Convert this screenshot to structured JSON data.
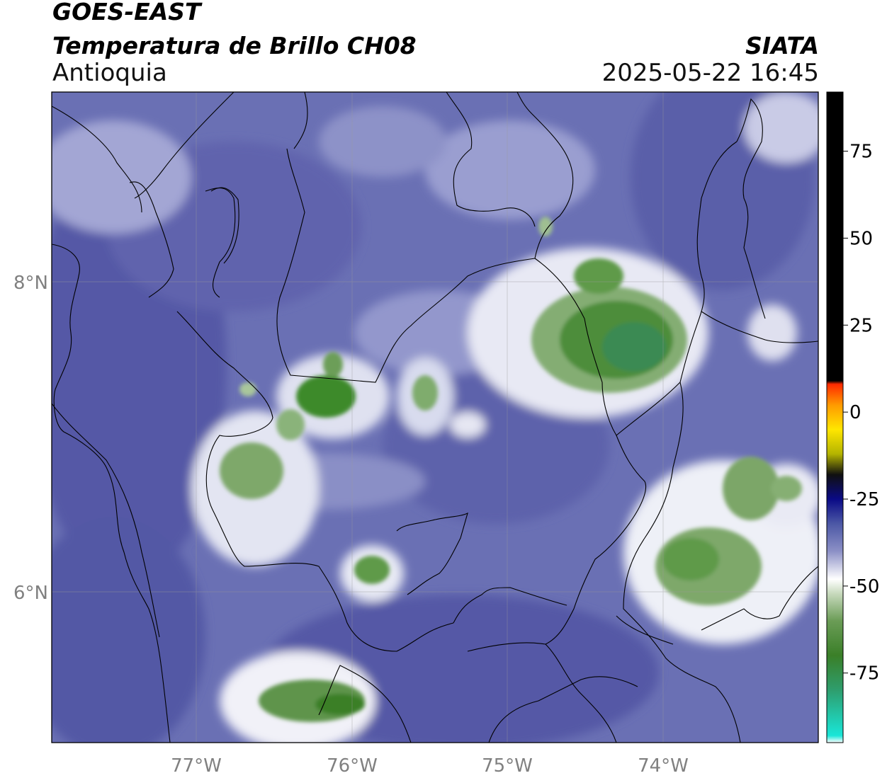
{
  "header": {
    "satellite": "GOES-EAST",
    "product": "Temperatura de Brillo CH08",
    "region": "Antioquia",
    "agency": "SIATA",
    "datetime": "2025-05-22 16:45"
  },
  "map": {
    "lat_ticks": [
      "8°N",
      "6°N"
    ],
    "lon_ticks": [
      "77°W",
      "76°W",
      "75°W",
      "74°W"
    ],
    "extent": {
      "lon": [
        -77.95,
        -73.0
      ],
      "lat": [
        5.05,
        9.25
      ]
    }
  },
  "colorbar": {
    "ticks": [
      "75",
      "50",
      "25",
      "0",
      "-25",
      "-50",
      "-75"
    ],
    "range": [
      -95,
      92
    ],
    "stops": [
      {
        "v": -95,
        "c": "#ffffff"
      },
      {
        "v": -93,
        "c": "#19e6d8"
      },
      {
        "v": -80,
        "c": "#2e9e6e"
      },
      {
        "v": -70,
        "c": "#3a7f28"
      },
      {
        "v": -60,
        "c": "#6b9c56"
      },
      {
        "v": -52,
        "c": "#c9dbbf"
      },
      {
        "v": -48,
        "c": "#ffffff"
      },
      {
        "v": -40,
        "c": "#8c90c6"
      },
      {
        "v": -32,
        "c": "#4b57a5"
      },
      {
        "v": -25,
        "c": "#0a0a86"
      },
      {
        "v": -18,
        "c": "#101010"
      },
      {
        "v": -12,
        "c": "#b5b500"
      },
      {
        "v": -5,
        "c": "#ffe600"
      },
      {
        "v": 2,
        "c": "#ff9b00"
      },
      {
        "v": 8,
        "c": "#ff2a00"
      },
      {
        "v": 9,
        "c": "#000000"
      },
      {
        "v": 92,
        "c": "#000000"
      }
    ]
  }
}
